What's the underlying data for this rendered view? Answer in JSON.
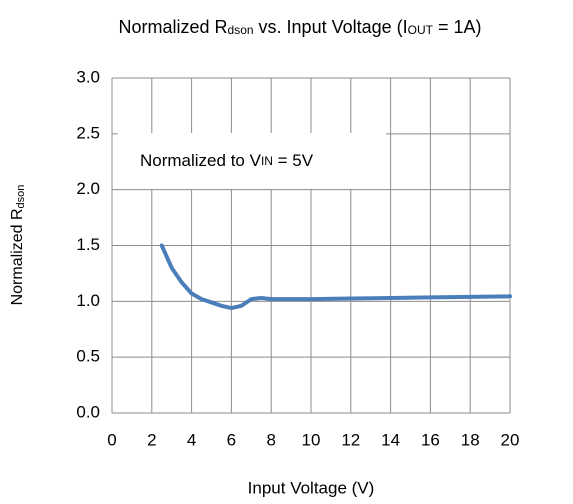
{
  "chart_data": {
    "type": "line",
    "title": [
      "Normalized R",
      "dson",
      " vs. Input Voltage (I",
      "OUT",
      " = 1A)"
    ],
    "x_label": "Input Voltage (V)",
    "y_label": [
      "Normalized R",
      "dson"
    ],
    "annotation": [
      "Normalized to V",
      "IN",
      " = 5V"
    ],
    "x": [
      2.5,
      3,
      3.5,
      4,
      4.5,
      5,
      5.5,
      6,
      6.5,
      7,
      7.5,
      8,
      10,
      12,
      14,
      16,
      18,
      20
    ],
    "values": [
      1.5,
      1.3,
      1.17,
      1.07,
      1.02,
      0.99,
      0.96,
      0.94,
      0.96,
      1.02,
      1.03,
      1.02,
      1.02,
      1.025,
      1.03,
      1.035,
      1.04,
      1.045
    ],
    "color": "#4a7ebb",
    "xlim": [
      0,
      20
    ],
    "xticks": [
      0,
      2,
      4,
      6,
      8,
      10,
      12,
      14,
      16,
      18,
      20
    ],
    "ylim": [
      0,
      3
    ],
    "yticks": [
      {
        "value": 0,
        "label": "0.0"
      },
      {
        "value": 0.5,
        "label": "0.5"
      },
      {
        "value": 1,
        "label": "1.0"
      },
      {
        "value": 1.5,
        "label": "1.5"
      },
      {
        "value": 2,
        "label": "2.0"
      },
      {
        "value": 2.5,
        "label": "2.5"
      },
      {
        "value": 3,
        "label": "3.0"
      }
    ],
    "grid": true
  }
}
